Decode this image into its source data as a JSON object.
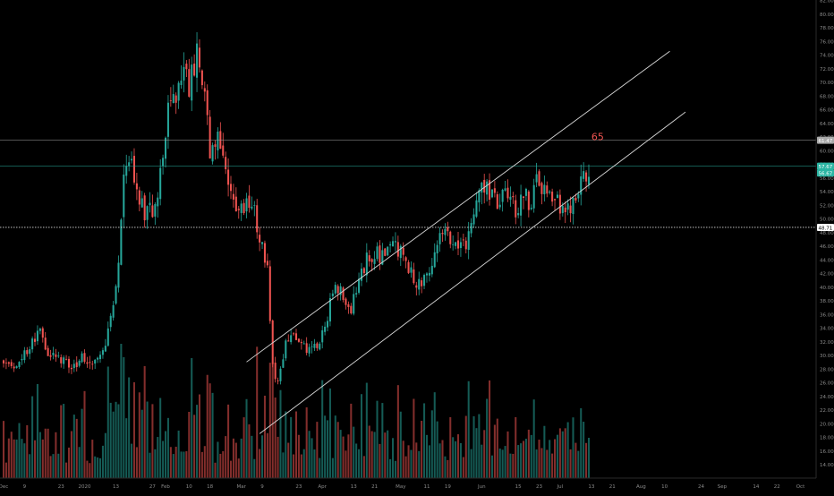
{
  "chart_data": {
    "type": "candlestick",
    "ylim": [
      12,
      82
    ],
    "y_ticks": [
      "14.00",
      "16.00",
      "18.00",
      "20.00",
      "22.00",
      "24.00",
      "26.00",
      "28.00",
      "30.00",
      "32.00",
      "34.00",
      "36.00",
      "38.00",
      "40.00",
      "42.00",
      "44.00",
      "46.00",
      "48.00",
      "50.00",
      "52.00",
      "54.00",
      "56.00",
      "58.00",
      "60.00",
      "62.00",
      "64.00",
      "66.00",
      "68.00",
      "70.00",
      "72.00",
      "74.00",
      "76.00",
      "78.00",
      "80.00",
      "82.00"
    ],
    "x_ticks": [
      {
        "label": "Dec",
        "day": 0
      },
      {
        "label": "9",
        "day": 8
      },
      {
        "label": "23",
        "day": 22
      },
      {
        "label": "2020",
        "day": 31
      },
      {
        "label": "13",
        "day": 43
      },
      {
        "label": "27",
        "day": 57
      },
      {
        "label": "Feb",
        "day": 62
      },
      {
        "label": "10",
        "day": 71
      },
      {
        "label": "18",
        "day": 79
      },
      {
        "label": "Mar",
        "day": 91
      },
      {
        "label": "9",
        "day": 99
      },
      {
        "label": "23",
        "day": 113
      },
      {
        "label": "Apr",
        "day": 122
      },
      {
        "label": "13",
        "day": 134
      },
      {
        "label": "21",
        "day": 142
      },
      {
        "label": "May",
        "day": 152
      },
      {
        "label": "11",
        "day": 162
      },
      {
        "label": "19",
        "day": 170
      },
      {
        "label": "Jun",
        "day": 183
      },
      {
        "label": "15",
        "day": 197
      },
      {
        "label": "23",
        "day": 205
      },
      {
        "label": "Jul",
        "day": 213
      },
      {
        "label": "13",
        "day": 225
      },
      {
        "label": "21",
        "day": 233
      },
      {
        "label": "Aug",
        "day": 244
      },
      {
        "label": "10",
        "day": 253
      },
      {
        "label": "24",
        "day": 267
      },
      {
        "label": "Sep",
        "day": 275
      },
      {
        "label": "14",
        "day": 288
      },
      {
        "label": "22",
        "day": 296
      },
      {
        "label": "Oct",
        "day": 305
      }
    ],
    "x_range_days": [
      0,
      311
    ],
    "price_anchors": [
      {
        "day": 0,
        "price": 29.5
      },
      {
        "day": 4,
        "price": 28.3
      },
      {
        "day": 9,
        "price": 30.8
      },
      {
        "day": 14,
        "price": 33.2
      },
      {
        "day": 18,
        "price": 29.8
      },
      {
        "day": 22,
        "price": 29.3
      },
      {
        "day": 26,
        "price": 28.2
      },
      {
        "day": 30,
        "price": 29.5
      },
      {
        "day": 34,
        "price": 29.2
      },
      {
        "day": 38,
        "price": 31.0
      },
      {
        "day": 41,
        "price": 34.8
      },
      {
        "day": 44,
        "price": 42.5
      },
      {
        "day": 46,
        "price": 55.5
      },
      {
        "day": 48,
        "price": 59.2
      },
      {
        "day": 51,
        "price": 53.0
      },
      {
        "day": 55,
        "price": 50.5
      },
      {
        "day": 58,
        "price": 52.0
      },
      {
        "day": 61,
        "price": 59.0
      },
      {
        "day": 63,
        "price": 66.5
      },
      {
        "day": 66,
        "price": 67.2
      },
      {
        "day": 68,
        "price": 72.0
      },
      {
        "day": 71,
        "price": 69.5
      },
      {
        "day": 74,
        "price": 74.5
      },
      {
        "day": 77,
        "price": 70.0
      },
      {
        "day": 79,
        "price": 60.0
      },
      {
        "day": 82,
        "price": 63.0
      },
      {
        "day": 85,
        "price": 58.0
      },
      {
        "day": 88,
        "price": 52.5
      },
      {
        "day": 90,
        "price": 50.5
      },
      {
        "day": 93,
        "price": 52.0
      },
      {
        "day": 96,
        "price": 50.8
      },
      {
        "day": 99,
        "price": 46.0
      },
      {
        "day": 101,
        "price": 42.0
      },
      {
        "day": 103,
        "price": 28.5
      },
      {
        "day": 105,
        "price": 26.0
      },
      {
        "day": 108,
        "price": 32.0
      },
      {
        "day": 111,
        "price": 33.5
      },
      {
        "day": 114,
        "price": 31.0
      },
      {
        "day": 118,
        "price": 30.5
      },
      {
        "day": 121,
        "price": 32.5
      },
      {
        "day": 124,
        "price": 35.5
      },
      {
        "day": 127,
        "price": 41.0
      },
      {
        "day": 130,
        "price": 38.0
      },
      {
        "day": 133,
        "price": 36.5
      },
      {
        "day": 136,
        "price": 41.5
      },
      {
        "day": 139,
        "price": 44.0
      },
      {
        "day": 142,
        "price": 45.0
      },
      {
        "day": 146,
        "price": 44.5
      },
      {
        "day": 150,
        "price": 46.0
      },
      {
        "day": 153,
        "price": 44.5
      },
      {
        "day": 156,
        "price": 42.0
      },
      {
        "day": 159,
        "price": 40.5
      },
      {
        "day": 163,
        "price": 42.0
      },
      {
        "day": 166,
        "price": 47.0
      },
      {
        "day": 169,
        "price": 48.5
      },
      {
        "day": 172,
        "price": 47.0
      },
      {
        "day": 175,
        "price": 45.5
      },
      {
        "day": 178,
        "price": 47.0
      },
      {
        "day": 181,
        "price": 54.0
      },
      {
        "day": 184,
        "price": 55.2
      },
      {
        "day": 187,
        "price": 53.0
      },
      {
        "day": 190,
        "price": 52.5
      },
      {
        "day": 193,
        "price": 53.5
      },
      {
        "day": 196,
        "price": 51.0
      },
      {
        "day": 199,
        "price": 53.5
      },
      {
        "day": 202,
        "price": 52.0
      },
      {
        "day": 204,
        "price": 57.5
      },
      {
        "day": 207,
        "price": 53.5
      },
      {
        "day": 210,
        "price": 52.5
      },
      {
        "day": 213,
        "price": 52.0
      },
      {
        "day": 216,
        "price": 51.5
      },
      {
        "day": 219,
        "price": 52.0
      },
      {
        "day": 221,
        "price": 55.8
      },
      {
        "day": 223,
        "price": 56.5
      },
      {
        "day": 224,
        "price": 57.67
      }
    ],
    "volume_max": 600,
    "horizontal_levels": [
      {
        "price": 61.47,
        "label": "61.47",
        "kind": "line",
        "color": "#a9a9a9"
      },
      {
        "price": 57.67,
        "label": "57.67",
        "kind": "line",
        "color": "#2bb5a3"
      },
      {
        "price": 56.67,
        "label": "56.67",
        "kind": "tag",
        "color": "#2bb5a3"
      },
      {
        "price": 48.71,
        "label": "48.71",
        "kind": "dotted",
        "color": "#ffffff"
      }
    ],
    "channel_lines": [
      {
        "start": {
          "day": 93,
          "price": 29.0
        },
        "end": {
          "day": 255,
          "price": 74.5
        }
      },
      {
        "start": {
          "day": 98,
          "price": 18.5
        },
        "end": {
          "day": 261,
          "price": 65.6
        }
      }
    ],
    "annotation": {
      "text": "65",
      "day": 225,
      "price": 61.5
    },
    "colors": {
      "up": "#26a69a",
      "down": "#ef5350",
      "background": "#000000",
      "axis_text": "#8a8a8a",
      "channel": "#d8d8d8",
      "annotation": "#ef5350"
    }
  }
}
